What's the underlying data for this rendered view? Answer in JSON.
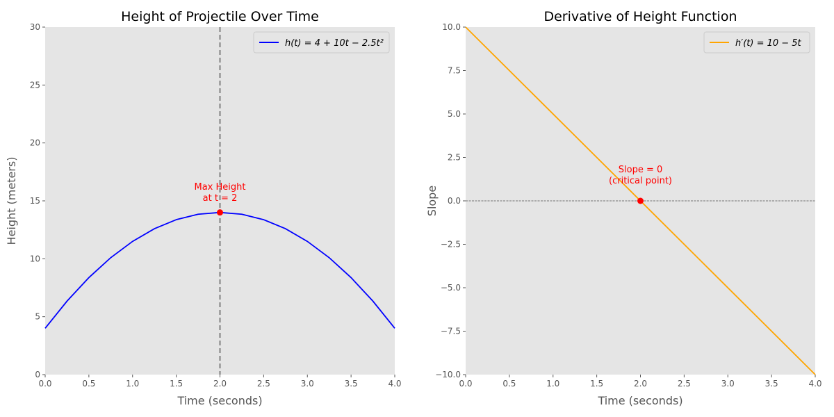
{
  "chart_data": [
    {
      "type": "line",
      "title": "Height of Projectile Over Time",
      "xlabel": "Time (seconds)",
      "ylabel": "Height (meters)",
      "xlim": [
        0,
        4
      ],
      "ylim": [
        0,
        30
      ],
      "xticks": [
        0,
        0.5,
        1,
        1.5,
        2,
        2.5,
        3,
        3.5,
        4
      ],
      "xtick_labels": [
        "0.0",
        "0.5",
        "1.0",
        "1.5",
        "2.0",
        "2.5",
        "3.0",
        "3.5",
        "4.0"
      ],
      "yticks": [
        0,
        5,
        10,
        15,
        20,
        25,
        30
      ],
      "ytick_labels": [
        "0",
        "5",
        "10",
        "15",
        "20",
        "25",
        "30"
      ],
      "grid": false,
      "legend_position": "top-right",
      "series": [
        {
          "name": "h(t) = 4 + 10t − 2.5t²",
          "color": "#0000ff",
          "x": [
            0,
            0.25,
            0.5,
            0.75,
            1,
            1.25,
            1.5,
            1.75,
            2,
            2.25,
            2.5,
            2.75,
            3,
            3.25,
            3.5,
            3.75,
            4
          ],
          "y": [
            4,
            6.34375,
            8.375,
            10.09375,
            11.5,
            12.59375,
            13.375,
            13.84375,
            14,
            13.84375,
            13.375,
            12.59375,
            11.5,
            10.09375,
            8.375,
            6.34375,
            4
          ]
        }
      ],
      "vline": {
        "x": 2,
        "color": "#808080"
      },
      "marker": {
        "x": 2,
        "y": 14,
        "color": "#ff0000"
      },
      "annotation": {
        "lines": [
          "Max Height",
          "at t = 2"
        ],
        "x": 2,
        "y": 15,
        "color": "#ff0000"
      }
    },
    {
      "type": "line",
      "title": "Derivative of Height Function",
      "xlabel": "Time (seconds)",
      "ylabel": "Slope",
      "xlim": [
        0,
        4
      ],
      "ylim": [
        -10,
        10
      ],
      "xticks": [
        0,
        0.5,
        1,
        1.5,
        2,
        2.5,
        3,
        3.5,
        4
      ],
      "xtick_labels": [
        "0.0",
        "0.5",
        "1.0",
        "1.5",
        "2.0",
        "2.5",
        "3.0",
        "3.5",
        "4.0"
      ],
      "yticks": [
        -10,
        -7.5,
        -5,
        -2.5,
        0,
        2.5,
        5,
        7.5,
        10
      ],
      "ytick_labels": [
        "−10.0",
        "−7.5",
        "−5.0",
        "−2.5",
        "0.0",
        "2.5",
        "5.0",
        "7.5",
        "10.0"
      ],
      "grid": false,
      "legend_position": "top-right",
      "series": [
        {
          "name": "h′(t) = 10 − 5t",
          "color": "#ffa500",
          "x": [
            0,
            4
          ],
          "y": [
            10,
            -10
          ]
        }
      ],
      "hline": {
        "y": 0,
        "color": "#000000"
      },
      "marker": {
        "x": 2,
        "y": 0,
        "color": "#ff0000"
      },
      "annotation": {
        "lines": [
          "Slope = 0",
          "(critical point)"
        ],
        "x": 2,
        "y": 1,
        "color": "#ff0000"
      }
    }
  ]
}
